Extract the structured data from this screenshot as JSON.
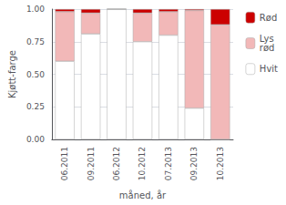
{
  "chart_data": {
    "type": "bar",
    "stacked": true,
    "xlabel": "måned, år",
    "ylabel": "Kjøtt-farge",
    "categories": [
      "06.2011",
      "09.2011",
      "06.2012",
      "10.2012",
      "07.2013",
      "09.2013",
      "10.2013"
    ],
    "series": [
      {
        "name": "Hvit",
        "color": "#ffffff",
        "values": [
          0.6,
          0.81,
          1.0,
          0.75,
          0.8,
          0.24,
          0.0
        ]
      },
      {
        "name": "Lys\nrød",
        "color": "#f2b8b8",
        "values": [
          0.38,
          0.16,
          0.0,
          0.22,
          0.18,
          0.75,
          0.88
        ]
      },
      {
        "name": "Rød",
        "color": "#cc0000",
        "values": [
          0.02,
          0.03,
          0.0,
          0.03,
          0.02,
          0.01,
          0.12
        ]
      }
    ],
    "ylim": [
      0.0,
      1.0
    ],
    "yticks": [
      {
        "value": 0,
        "label": "0.00"
      },
      0.25,
      {
        "value": 0.5,
        "label": "0.50"
      },
      0.75,
      {
        "value": 1.0,
        "label": "1.00"
      }
    ],
    "grid": true,
    "legend": "upper right"
  }
}
